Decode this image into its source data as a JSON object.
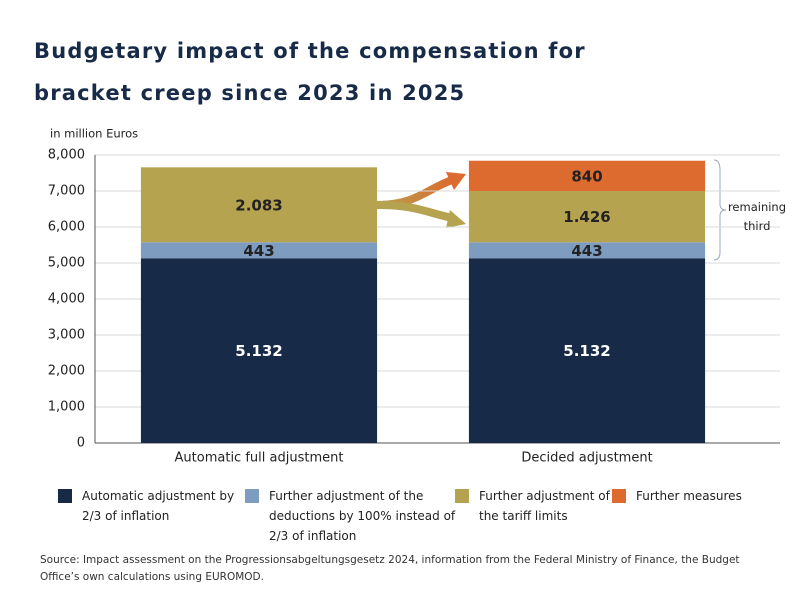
{
  "chart_data": {
    "type": "stacked_bar",
    "title": "Budgetary impact of the compensation for bracket creep since 2023 in 2025",
    "ylabel": "in million Euros",
    "categories": [
      "Automatic full adjustment",
      "Decided adjustment"
    ],
    "series": [
      {
        "name": "Automatic adjustment by 2/3 of inflation",
        "color": "#172a47",
        "values": [
          5132,
          5132
        ],
        "value_labels": [
          "5.132",
          "5.132"
        ]
      },
      {
        "name": "Further adjustment of the deductions by 100% instead of 2/3 of inflation",
        "color": "#7d9cc0",
        "values": [
          443,
          443
        ]
      },
      {
        "name": "Further adjustment of the tariff limits",
        "color": "#b5a350",
        "values": [
          2083,
          1426
        ],
        "value_labels": [
          "2.083",
          "1.426"
        ]
      },
      {
        "name": "Further measures",
        "color": "#dd6a2e",
        "values": [
          null,
          840
        ]
      }
    ],
    "ylim": [
      0,
      8000
    ],
    "yticks": [
      0,
      {
        "value": 1000,
        "label": "1,000"
      },
      {
        "value": 2000,
        "label": "2,000"
      },
      {
        "value": 3000,
        "label": "3,000"
      },
      {
        "value": 4000,
        "label": "4,000"
      },
      {
        "value": 5000,
        "label": "5,000"
      },
      {
        "value": 6000,
        "label": "6,000"
      },
      {
        "value": 7000,
        "label": "7,000"
      },
      {
        "value": 8000,
        "label": "8,000"
      }
    ],
    "grid": true,
    "annotation": "remaining third",
    "source": "Source: Impact assessment on the Progressionsabgeltungsgesetz 2024, information from the Federal Ministry of Finance, the Budget Office’s own calculations using EUROMOD."
  }
}
